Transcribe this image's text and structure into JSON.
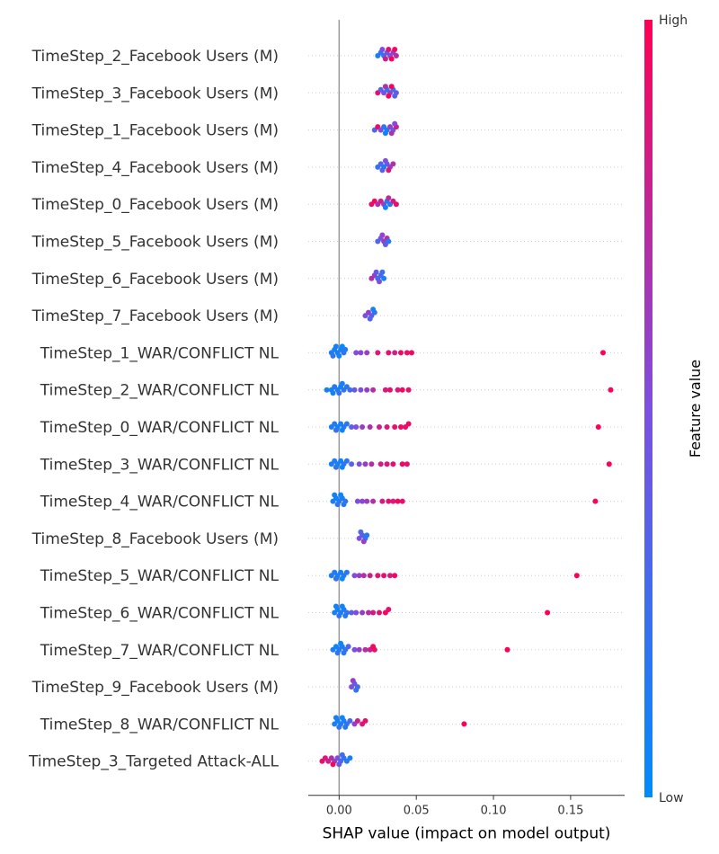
{
  "chart_data": {
    "type": "scatter",
    "xlabel": "SHAP value (impact on model output)",
    "xlim": [
      -0.02,
      0.185
    ],
    "xticks": [
      0.0,
      0.05,
      0.1,
      0.15
    ],
    "xtick_labels": [
      "0.00",
      "0.05",
      "0.10",
      "0.15"
    ],
    "colorbar": {
      "label": "Feature value",
      "high_label": "High",
      "low_label": "Low",
      "low_color": "#008bfb",
      "mid_color": "#7d4fe0",
      "high_color": "#ff0052"
    },
    "features": [
      {
        "name": "TimeStep_2_Facebook Users (M)",
        "points": [
          [
            0.025,
            0.1
          ],
          [
            0.027,
            0.2
          ],
          [
            0.029,
            0.3
          ],
          [
            0.031,
            0.4
          ],
          [
            0.033,
            0.5
          ],
          [
            0.035,
            0.6
          ],
          [
            0.037,
            0.7
          ],
          [
            0.03,
            0.8
          ],
          [
            0.032,
            0.9
          ],
          [
            0.034,
            1.0
          ],
          [
            0.036,
            0.95
          ],
          [
            0.028,
            0.5
          ]
        ]
      },
      {
        "name": "TimeStep_3_Facebook Users (M)",
        "points": [
          [
            0.025,
            0.9
          ],
          [
            0.027,
            0.3
          ],
          [
            0.029,
            0.5
          ],
          [
            0.031,
            0.1
          ],
          [
            0.033,
            0.6
          ],
          [
            0.035,
            0.2
          ],
          [
            0.037,
            0.4
          ],
          [
            0.032,
            0.95
          ],
          [
            0.034,
            1.0
          ],
          [
            0.03,
            0.7
          ],
          [
            0.036,
            0.35
          ]
        ]
      },
      {
        "name": "TimeStep_1_Facebook Users (M)",
        "points": [
          [
            0.023,
            0.3
          ],
          [
            0.025,
            0.95
          ],
          [
            0.027,
            0.5
          ],
          [
            0.029,
            0.2
          ],
          [
            0.031,
            0.1
          ],
          [
            0.033,
            0.6
          ],
          [
            0.035,
            0.4
          ],
          [
            0.037,
            0.8
          ],
          [
            0.034,
            0.7
          ],
          [
            0.03,
            0.05
          ],
          [
            0.036,
            0.55
          ]
        ]
      },
      {
        "name": "TimeStep_4_Facebook Users (M)",
        "points": [
          [
            0.025,
            0.2
          ],
          [
            0.027,
            0.3
          ],
          [
            0.029,
            0.1
          ],
          [
            0.031,
            0.4
          ],
          [
            0.033,
            0.6
          ],
          [
            0.035,
            0.7
          ],
          [
            0.032,
            0.85
          ],
          [
            0.03,
            0.5
          ],
          [
            0.028,
            0.35
          ]
        ]
      },
      {
        "name": "TimeStep_0_Facebook Users (M)",
        "points": [
          [
            0.021,
            0.9
          ],
          [
            0.023,
            0.95
          ],
          [
            0.025,
            0.7
          ],
          [
            0.027,
            0.8
          ],
          [
            0.029,
            0.6
          ],
          [
            0.031,
            0.1
          ],
          [
            0.033,
            0.2
          ],
          [
            0.035,
            0.85
          ],
          [
            0.037,
            0.9
          ],
          [
            0.03,
            0.05
          ],
          [
            0.032,
            0.75
          ]
        ]
      },
      {
        "name": "TimeStep_5_Facebook Users (M)",
        "points": [
          [
            0.025,
            0.3
          ],
          [
            0.027,
            0.5
          ],
          [
            0.029,
            0.6
          ],
          [
            0.031,
            0.7
          ],
          [
            0.032,
            0.1
          ],
          [
            0.03,
            0.4
          ],
          [
            0.028,
            0.55
          ]
        ]
      },
      {
        "name": "TimeStep_6_Facebook Users (M)",
        "points": [
          [
            0.021,
            0.7
          ],
          [
            0.023,
            0.6
          ],
          [
            0.025,
            0.2
          ],
          [
            0.027,
            0.3
          ],
          [
            0.029,
            0.1
          ],
          [
            0.026,
            0.5
          ],
          [
            0.024,
            0.4
          ],
          [
            0.028,
            0.25
          ]
        ]
      },
      {
        "name": "TimeStep_7_Facebook Users (M)",
        "points": [
          [
            0.017,
            0.5
          ],
          [
            0.019,
            0.6
          ],
          [
            0.021,
            0.4
          ],
          [
            0.023,
            0.2
          ],
          [
            0.02,
            0.3
          ],
          [
            0.022,
            0.1
          ]
        ]
      },
      {
        "name": "TimeStep_1_WAR/CONFLICT NL",
        "points": [
          [
            -0.005,
            0.1
          ],
          [
            -0.003,
            0.05
          ],
          [
            -0.001,
            0.15
          ],
          [
            0.001,
            0.1
          ],
          [
            0.003,
            0.2
          ],
          [
            -0.004,
            0.2
          ],
          [
            0.0,
            0.05
          ],
          [
            0.002,
            0.0
          ],
          [
            0.011,
            0.5
          ],
          [
            0.014,
            0.55
          ],
          [
            0.018,
            0.6
          ],
          [
            0.025,
            0.85
          ],
          [
            0.032,
            0.9
          ],
          [
            0.036,
            0.8
          ],
          [
            0.04,
            0.95
          ],
          [
            0.044,
            0.9
          ],
          [
            0.047,
            0.95
          ],
          [
            0.171,
            1.0
          ],
          [
            -0.002,
            0.1
          ],
          [
            0.004,
            0.15
          ]
        ]
      },
      {
        "name": "TimeStep_2_WAR/CONFLICT NL",
        "points": [
          [
            -0.008,
            0.1
          ],
          [
            -0.005,
            0.05
          ],
          [
            -0.003,
            0.15
          ],
          [
            -0.001,
            0.1
          ],
          [
            0.001,
            0.05
          ],
          [
            0.003,
            0.2
          ],
          [
            0.005,
            0.15
          ],
          [
            0.007,
            0.25
          ],
          [
            0.01,
            0.4
          ],
          [
            0.014,
            0.5
          ],
          [
            0.018,
            0.6
          ],
          [
            0.022,
            0.7
          ],
          [
            0.03,
            0.85
          ],
          [
            0.033,
            0.9
          ],
          [
            0.038,
            0.85
          ],
          [
            0.041,
            0.95
          ],
          [
            0.045,
            0.9
          ],
          [
            0.176,
            1.0
          ],
          [
            -0.004,
            0.1
          ],
          [
            0.0,
            0.2
          ],
          [
            0.002,
            0.1
          ]
        ]
      },
      {
        "name": "TimeStep_0_WAR/CONFLICT NL",
        "points": [
          [
            -0.005,
            0.1
          ],
          [
            -0.003,
            0.15
          ],
          [
            -0.001,
            0.05
          ],
          [
            0.001,
            0.1
          ],
          [
            0.003,
            0.2
          ],
          [
            0.005,
            0.15
          ],
          [
            0.008,
            0.35
          ],
          [
            0.011,
            0.5
          ],
          [
            0.015,
            0.6
          ],
          [
            0.02,
            0.7
          ],
          [
            0.026,
            0.8
          ],
          [
            0.031,
            0.85
          ],
          [
            0.036,
            0.9
          ],
          [
            0.04,
            0.95
          ],
          [
            0.043,
            0.9
          ],
          [
            0.045,
            0.95
          ],
          [
            0.168,
            1.0
          ],
          [
            0.002,
            0.05
          ],
          [
            -0.002,
            0.2
          ]
        ]
      },
      {
        "name": "TimeStep_3_WAR/CONFLICT NL",
        "points": [
          [
            -0.005,
            0.1
          ],
          [
            -0.003,
            0.15
          ],
          [
            -0.001,
            0.05
          ],
          [
            0.001,
            0.1
          ],
          [
            0.003,
            0.2
          ],
          [
            0.005,
            0.15
          ],
          [
            0.008,
            0.35
          ],
          [
            0.013,
            0.5
          ],
          [
            0.017,
            0.6
          ],
          [
            0.021,
            0.7
          ],
          [
            0.027,
            0.8
          ],
          [
            0.031,
            0.85
          ],
          [
            0.035,
            0.9
          ],
          [
            0.041,
            0.95
          ],
          [
            0.044,
            0.9
          ],
          [
            0.175,
            1.0
          ],
          [
            0.002,
            0.05
          ],
          [
            -0.002,
            0.2
          ]
        ]
      },
      {
        "name": "TimeStep_4_WAR/CONFLICT NL",
        "points": [
          [
            -0.004,
            0.1
          ],
          [
            -0.002,
            0.05
          ],
          [
            0.0,
            0.15
          ],
          [
            0.002,
            0.1
          ],
          [
            0.004,
            0.2
          ],
          [
            -0.001,
            0.2
          ],
          [
            0.001,
            0.05
          ],
          [
            0.012,
            0.5
          ],
          [
            0.015,
            0.55
          ],
          [
            0.018,
            0.6
          ],
          [
            0.022,
            0.7
          ],
          [
            0.028,
            0.85
          ],
          [
            0.032,
            0.9
          ],
          [
            0.035,
            0.85
          ],
          [
            0.038,
            0.95
          ],
          [
            0.041,
            0.9
          ],
          [
            0.166,
            1.0
          ],
          [
            0.003,
            0.15
          ],
          [
            -0.003,
            0.1
          ]
        ]
      },
      {
        "name": "TimeStep_8_Facebook Users (M)",
        "points": [
          [
            0.013,
            0.5
          ],
          [
            0.015,
            0.4
          ],
          [
            0.017,
            0.2
          ],
          [
            0.016,
            0.6
          ],
          [
            0.014,
            0.3
          ],
          [
            0.018,
            0.15
          ]
        ]
      },
      {
        "name": "TimeStep_5_WAR/CONFLICT NL",
        "points": [
          [
            -0.005,
            0.1
          ],
          [
            -0.003,
            0.15
          ],
          [
            -0.001,
            0.05
          ],
          [
            0.001,
            0.1
          ],
          [
            0.003,
            0.2
          ],
          [
            0.005,
            0.15
          ],
          [
            0.01,
            0.5
          ],
          [
            0.013,
            0.6
          ],
          [
            0.016,
            0.7
          ],
          [
            0.02,
            0.8
          ],
          [
            0.025,
            0.85
          ],
          [
            0.029,
            0.9
          ],
          [
            0.033,
            0.85
          ],
          [
            0.036,
            0.95
          ],
          [
            0.154,
            1.0
          ],
          [
            0.002,
            0.05
          ],
          [
            -0.002,
            0.2
          ]
        ]
      },
      {
        "name": "TimeStep_6_WAR/CONFLICT NL",
        "points": [
          [
            -0.003,
            0.1
          ],
          [
            -0.001,
            0.05
          ],
          [
            0.001,
            0.15
          ],
          [
            0.003,
            0.1
          ],
          [
            0.005,
            0.2
          ],
          [
            0.0,
            0.2
          ],
          [
            0.002,
            0.05
          ],
          [
            0.008,
            0.35
          ],
          [
            0.011,
            0.5
          ],
          [
            0.015,
            0.6
          ],
          [
            0.019,
            0.7
          ],
          [
            0.022,
            0.85
          ],
          [
            0.026,
            0.9
          ],
          [
            0.03,
            0.95
          ],
          [
            0.032,
            0.9
          ],
          [
            0.135,
            1.0
          ],
          [
            0.004,
            0.15
          ],
          [
            -0.002,
            0.1
          ]
        ]
      },
      {
        "name": "TimeStep_7_WAR/CONFLICT NL",
        "points": [
          [
            -0.004,
            0.1
          ],
          [
            -0.002,
            0.05
          ],
          [
            0.0,
            0.15
          ],
          [
            0.002,
            0.1
          ],
          [
            0.004,
            0.2
          ],
          [
            -0.001,
            0.2
          ],
          [
            0.001,
            0.05
          ],
          [
            0.006,
            0.3
          ],
          [
            0.01,
            0.5
          ],
          [
            0.013,
            0.6
          ],
          [
            0.017,
            0.7
          ],
          [
            0.02,
            0.8
          ],
          [
            0.023,
            0.9
          ],
          [
            0.022,
            0.95
          ],
          [
            0.109,
            1.0
          ],
          [
            0.003,
            0.15
          ]
        ]
      },
      {
        "name": "TimeStep_9_Facebook Users (M)",
        "points": [
          [
            0.008,
            0.5
          ],
          [
            0.01,
            0.4
          ],
          [
            0.012,
            0.3
          ],
          [
            0.011,
            0.2
          ],
          [
            0.009,
            0.6
          ]
        ]
      },
      {
        "name": "TimeStep_8_WAR/CONFLICT NL",
        "points": [
          [
            -0.003,
            0.1
          ],
          [
            -0.001,
            0.05
          ],
          [
            0.001,
            0.15
          ],
          [
            0.003,
            0.1
          ],
          [
            0.005,
            0.2
          ],
          [
            0.0,
            0.2
          ],
          [
            0.002,
            0.05
          ],
          [
            0.007,
            0.3
          ],
          [
            0.01,
            0.6
          ],
          [
            0.012,
            0.8
          ],
          [
            0.015,
            0.85
          ],
          [
            0.017,
            0.9
          ],
          [
            0.081,
            1.0
          ],
          [
            0.004,
            0.15
          ],
          [
            -0.002,
            0.1
          ]
        ]
      },
      {
        "name": "TimeStep_3_Targeted Attack-ALL",
        "points": [
          [
            -0.011,
            0.9
          ],
          [
            -0.009,
            0.85
          ],
          [
            -0.007,
            0.8
          ],
          [
            -0.005,
            0.7
          ],
          [
            -0.003,
            0.6
          ],
          [
            -0.001,
            0.5
          ],
          [
            0.001,
            0.3
          ],
          [
            0.003,
            0.2
          ],
          [
            0.005,
            0.15
          ],
          [
            0.007,
            0.1
          ],
          [
            -0.004,
            0.95
          ],
          [
            0.0,
            0.4
          ],
          [
            0.002,
            0.25
          ]
        ]
      }
    ]
  }
}
